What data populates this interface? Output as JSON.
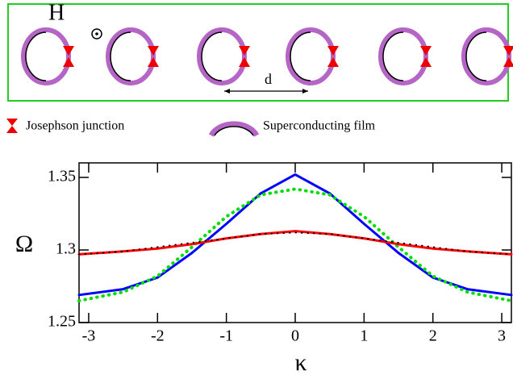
{
  "diagram": {
    "field_label": "H",
    "spacing_label": "d",
    "legend": [
      "Josephson junction",
      "Superconducting film"
    ]
  },
  "chart_data": {
    "type": "line",
    "x_label": "κ",
    "y_label": "Ω",
    "x": [
      -3.14,
      -2.5,
      -2,
      -1.5,
      -1,
      -0.5,
      0,
      0.5,
      1,
      1.5,
      2,
      2.5,
      3.14
    ],
    "series": [
      {
        "color": "#0000ff",
        "style": "solid",
        "values": [
          1.269,
          1.273,
          1.281,
          1.298,
          1.318,
          1.339,
          1.352,
          1.339,
          1.318,
          1.298,
          1.281,
          1.273,
          1.269
        ]
      },
      {
        "color": "#00dd00",
        "style": "dotted",
        "values": [
          1.265,
          1.271,
          1.282,
          1.302,
          1.323,
          1.338,
          1.342,
          1.338,
          1.323,
          1.302,
          1.282,
          1.271,
          1.265
        ]
      },
      {
        "color": "#ff0000",
        "style": "solid",
        "values": [
          1.297,
          1.299,
          1.301,
          1.304,
          1.308,
          1.311,
          1.313,
          1.311,
          1.308,
          1.304,
          1.301,
          1.299,
          1.297
        ]
      },
      {
        "color": "#000000",
        "style": "dotted",
        "values": [
          1.297,
          1.299,
          1.302,
          1.305,
          1.308,
          1.311,
          1.312,
          1.311,
          1.308,
          1.305,
          1.302,
          1.299,
          1.297
        ]
      }
    ],
    "xlim": [
      -3.14,
      3.14
    ],
    "ylim": [
      1.25,
      1.36
    ],
    "xticks": [
      -3,
      -2,
      -1,
      0,
      1,
      2,
      3
    ],
    "yticks": [
      {
        "value": 1.25,
        "label": "1.25"
      },
      1.3,
      {
        "value": 1.35,
        "label": "1.35"
      }
    ]
  }
}
